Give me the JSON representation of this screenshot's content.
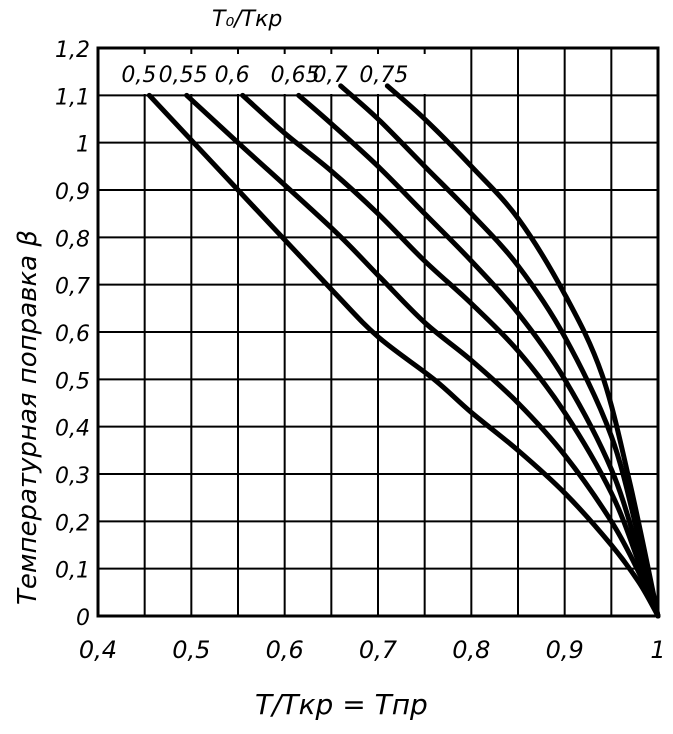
{
  "chart_data": {
    "type": "line",
    "legend_title": "T₀/Tкр",
    "xlabel": "T/Tкр = Tпр",
    "ylabel": "Температурная поправка β",
    "xlim": [
      0.4,
      1.0
    ],
    "ylim": [
      0,
      1.2
    ],
    "x_ticks": [
      {
        "value": 0.4,
        "label": "0,4"
      },
      {
        "value": 0.5,
        "label": "0,5"
      },
      {
        "value": 0.6,
        "label": "0,6"
      },
      {
        "value": 0.7,
        "label": "0,7"
      },
      {
        "value": 0.8,
        "label": "0,8"
      },
      {
        "value": 0.9,
        "label": "0,9"
      },
      {
        "value": 1.0,
        "label": "1"
      }
    ],
    "y_ticks": [
      {
        "value": 0,
        "label": "0"
      },
      {
        "value": 0.1,
        "label": "0,1"
      },
      {
        "value": 0.2,
        "label": "0,2"
      },
      {
        "value": 0.3,
        "label": "0,3"
      },
      {
        "value": 0.4,
        "label": "0,4"
      },
      {
        "value": 0.5,
        "label": "0,5"
      },
      {
        "value": 0.6,
        "label": "0,6"
      },
      {
        "value": 0.7,
        "label": "0,7"
      },
      {
        "value": 0.8,
        "label": "0,8"
      },
      {
        "value": 0.9,
        "label": "0,9"
      },
      {
        "value": 1.0,
        "label": "1"
      },
      {
        "value": 1.1,
        "label": "1,1"
      },
      {
        "value": 1.2,
        "label": "1,2"
      }
    ],
    "grid": true,
    "series": [
      {
        "name": "0,5",
        "points": [
          [
            0.455,
            1.1
          ],
          [
            0.55,
            0.9
          ],
          [
            0.65,
            0.69
          ],
          [
            0.7,
            0.59
          ],
          [
            0.76,
            0.5
          ],
          [
            0.8,
            0.43
          ],
          [
            0.85,
            0.35
          ],
          [
            0.9,
            0.26
          ],
          [
            0.95,
            0.15
          ],
          [
            0.98,
            0.07
          ],
          [
            1.0,
            0.0
          ]
        ]
      },
      {
        "name": "0,55",
        "points": [
          [
            0.495,
            1.1
          ],
          [
            0.55,
            1.0
          ],
          [
            0.65,
            0.82
          ],
          [
            0.7,
            0.72
          ],
          [
            0.75,
            0.62
          ],
          [
            0.8,
            0.54
          ],
          [
            0.85,
            0.45
          ],
          [
            0.9,
            0.34
          ],
          [
            0.95,
            0.2
          ],
          [
            0.98,
            0.09
          ],
          [
            1.0,
            0.0
          ]
        ]
      },
      {
        "name": "0,6",
        "points": [
          [
            0.555,
            1.1
          ],
          [
            0.6,
            1.02
          ],
          [
            0.65,
            0.94
          ],
          [
            0.7,
            0.85
          ],
          [
            0.75,
            0.75
          ],
          [
            0.8,
            0.66
          ],
          [
            0.85,
            0.56
          ],
          [
            0.9,
            0.43
          ],
          [
            0.95,
            0.26
          ],
          [
            0.98,
            0.11
          ],
          [
            1.0,
            0.0
          ]
        ]
      },
      {
        "name": "0,65",
        "points": [
          [
            0.615,
            1.1
          ],
          [
            0.65,
            1.04
          ],
          [
            0.7,
            0.95
          ],
          [
            0.75,
            0.85
          ],
          [
            0.8,
            0.75
          ],
          [
            0.85,
            0.64
          ],
          [
            0.9,
            0.5
          ],
          [
            0.95,
            0.31
          ],
          [
            0.98,
            0.13
          ],
          [
            1.0,
            0.0
          ]
        ]
      },
      {
        "name": "0,7",
        "points": [
          [
            0.66,
            1.12
          ],
          [
            0.7,
            1.05
          ],
          [
            0.75,
            0.95
          ],
          [
            0.8,
            0.85
          ],
          [
            0.85,
            0.74
          ],
          [
            0.9,
            0.59
          ],
          [
            0.95,
            0.38
          ],
          [
            0.98,
            0.16
          ],
          [
            1.0,
            0.0
          ]
        ]
      },
      {
        "name": "0,75",
        "points": [
          [
            0.71,
            1.12
          ],
          [
            0.75,
            1.05
          ],
          [
            0.8,
            0.95
          ],
          [
            0.85,
            0.84
          ],
          [
            0.9,
            0.68
          ],
          [
            0.94,
            0.51
          ],
          [
            0.97,
            0.28
          ],
          [
            1.0,
            0.0
          ]
        ]
      }
    ]
  }
}
